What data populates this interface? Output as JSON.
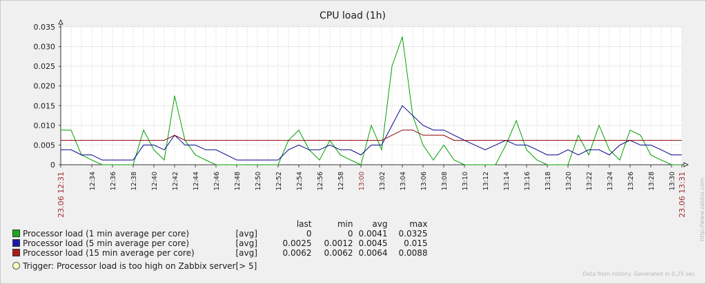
{
  "chart_data": {
    "type": "line",
    "title": "CPU load (1h)",
    "ylim": [
      0,
      0.035
    ],
    "yticks": [
      "0",
      "0.005",
      "0.010",
      "0.015",
      "0.020",
      "0.025",
      "0.030",
      "0.035"
    ],
    "x_minutes": [
      0,
      1,
      2,
      3,
      4,
      5,
      6,
      7,
      8,
      9,
      10,
      11,
      12,
      13,
      14,
      15,
      16,
      17,
      18,
      19,
      20,
      21,
      22,
      23,
      24,
      25,
      26,
      27,
      28,
      29,
      30,
      31,
      32,
      33,
      34,
      35,
      36,
      37,
      38,
      39,
      40,
      41,
      42,
      43,
      44,
      45,
      46,
      47,
      48,
      49,
      50,
      51,
      52,
      53,
      54,
      55,
      56,
      57,
      58,
      59,
      60
    ],
    "xtick_labels": [
      {
        "label": "23.06 12:31",
        "edge": true,
        "color": "#a03030"
      },
      {
        "label": "12:34"
      },
      {
        "label": "12:36"
      },
      {
        "label": "12:38"
      },
      {
        "label": "12:40"
      },
      {
        "label": "12:42"
      },
      {
        "label": "12:44"
      },
      {
        "label": "12:46"
      },
      {
        "label": "12:48"
      },
      {
        "label": "12:50"
      },
      {
        "label": "12:52"
      },
      {
        "label": "12:54"
      },
      {
        "label": "12:56"
      },
      {
        "label": "12:58"
      },
      {
        "label": "13:00",
        "color": "#a03030"
      },
      {
        "label": "13:02"
      },
      {
        "label": "13:04"
      },
      {
        "label": "13:06"
      },
      {
        "label": "13:08"
      },
      {
        "label": "13:10"
      },
      {
        "label": "13:12"
      },
      {
        "label": "13:14"
      },
      {
        "label": "13:16"
      },
      {
        "label": "13:18"
      },
      {
        "label": "13:20"
      },
      {
        "label": "13:22"
      },
      {
        "label": "13:24"
      },
      {
        "label": "13:26"
      },
      {
        "label": "13:28"
      },
      {
        "label": "13:30"
      },
      {
        "label": "23.06 13:31",
        "edge": true,
        "color": "#a03030"
      }
    ],
    "trigger_threshold": 0.006,
    "series": [
      {
        "name": "Processor load (1 min average per core)",
        "color": "#00a000",
        "swatch": "#1aaa1a",
        "values": [
          0.0088,
          0.0088,
          0.0025,
          0.0012,
          0,
          0,
          0,
          0,
          0.0088,
          0.0038,
          0.0012,
          0.0175,
          0.0062,
          0.0025,
          0.0012,
          0,
          0,
          0,
          0,
          0,
          0,
          0,
          0.0062,
          0.0088,
          0.0038,
          0.0012,
          0.0062,
          0.0025,
          0.0012,
          0,
          0.01,
          0.0038,
          0.025,
          0.0325,
          0.0125,
          0.005,
          0.0012,
          0.005,
          0.0012,
          0,
          0,
          0,
          0,
          0.005,
          0.0112,
          0.0038,
          0.0012,
          0,
          0,
          0,
          0.0075,
          0.0025,
          0.01,
          0.0038,
          0.0012,
          0.0088,
          0.0075,
          0.0025,
          0.0012,
          0,
          0
        ]
      },
      {
        "name": "Processor load (5 min average per core)",
        "color": "#00008b",
        "swatch": "#1a1aaa",
        "values": [
          0.0038,
          0.0038,
          0.0025,
          0.0025,
          0.0012,
          0.0012,
          0.0012,
          0.0012,
          0.005,
          0.005,
          0.0038,
          0.0075,
          0.005,
          0.005,
          0.0038,
          0.0038,
          0.0025,
          0.0012,
          0.0012,
          0.0012,
          0.0012,
          0.0012,
          0.0038,
          0.005,
          0.0038,
          0.0038,
          0.005,
          0.0038,
          0.0038,
          0.0025,
          0.005,
          0.005,
          0.01,
          0.015,
          0.0125,
          0.01,
          0.0088,
          0.0088,
          0.0075,
          0.0062,
          0.005,
          0.0038,
          0.005,
          0.0062,
          0.005,
          0.005,
          0.0038,
          0.0025,
          0.0025,
          0.0038,
          0.0025,
          0.0038,
          0.0038,
          0.0025,
          0.005,
          0.0062,
          0.005,
          0.005,
          0.0038,
          0.0025,
          0.0025
        ]
      },
      {
        "name": "Processor load (15 min average per core)",
        "color": "#8b0000",
        "swatch": "#aa1a1a",
        "values": [
          0.0062,
          0.0062,
          0.0062,
          0.0062,
          0.0062,
          0.0062,
          0.0062,
          0.0062,
          0.0062,
          0.0062,
          0.0062,
          0.0075,
          0.0062,
          0.0062,
          0.0062,
          0.0062,
          0.0062,
          0.0062,
          0.0062,
          0.0062,
          0.0062,
          0.0062,
          0.0062,
          0.0062,
          0.0062,
          0.0062,
          0.0062,
          0.0062,
          0.0062,
          0.0062,
          0.0062,
          0.0062,
          0.0075,
          0.0088,
          0.0088,
          0.0075,
          0.0075,
          0.0075,
          0.0062,
          0.0062,
          0.0062,
          0.0062,
          0.0062,
          0.0062,
          0.0062,
          0.0062,
          0.0062,
          0.0062,
          0.0062,
          0.0062,
          0.0062,
          0.0062,
          0.0062,
          0.0062,
          0.0062,
          0.0062,
          0.0062,
          0.0062,
          0.0062,
          0.0062,
          0.0062
        ]
      }
    ]
  },
  "legend": {
    "headers": {
      "last": "last",
      "min": "min",
      "avg": "avg",
      "max": "max"
    },
    "rows": [
      {
        "name": "Processor load (1 min average per core)",
        "agg": "[avg]",
        "last": "0",
        "min": "0",
        "avg": "0.0041",
        "max": "0.0325"
      },
      {
        "name": "Processor load (5 min average per core)",
        "agg": "[avg]",
        "last": "0.0025",
        "min": "0.0012",
        "avg": "0.0045",
        "max": "0.015"
      },
      {
        "name": "Processor load (15 min average per core)",
        "agg": "[avg]",
        "last": "0.0062",
        "min": "0.0062",
        "avg": "0.0064",
        "max": "0.0088"
      }
    ],
    "trigger": {
      "text": "Trigger: Processor load is too high on Zabbix server",
      "threshold": "[> 5]"
    }
  },
  "footer": {
    "note": "Data from history. Generated in 0.25 sec",
    "side": "http://www.zabbix.com"
  }
}
